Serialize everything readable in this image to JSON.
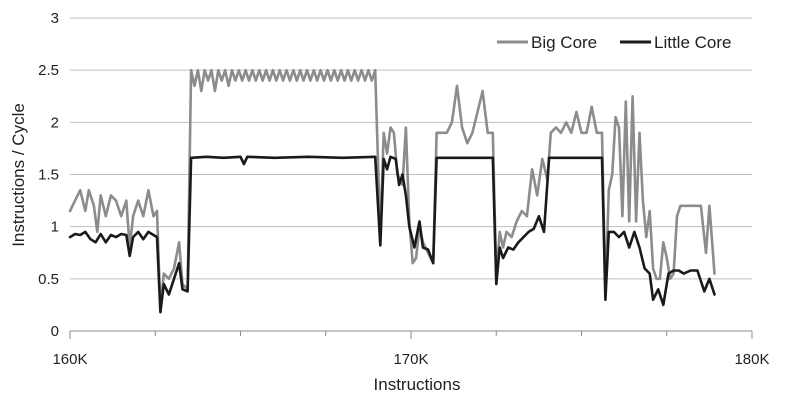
{
  "chart_data": {
    "type": "line",
    "xlabel": "Instructions",
    "ylabel": "Instructions / Cycle",
    "xlim": [
      160000,
      180000
    ],
    "ylim": [
      0,
      3
    ],
    "x_ticks": [
      160000,
      170000,
      180000
    ],
    "x_tick_labels": [
      "160K",
      "170K",
      "180K"
    ],
    "y_ticks": [
      0,
      0.5,
      1,
      1.5,
      2,
      2.5,
      3
    ],
    "y_tick_labels": [
      "0",
      "0.5",
      "1",
      "1.5",
      "2",
      "2.5",
      "3"
    ],
    "grid": "horizontal",
    "legend_position": "top-right",
    "series": [
      {
        "name": "Big Core",
        "color": "#8c8c8c",
        "points": [
          [
            160000,
            1.15
          ],
          [
            160150,
            1.25
          ],
          [
            160300,
            1.35
          ],
          [
            160450,
            1.15
          ],
          [
            160550,
            1.35
          ],
          [
            160700,
            1.2
          ],
          [
            160800,
            0.95
          ],
          [
            160900,
            1.3
          ],
          [
            161050,
            1.1
          ],
          [
            161200,
            1.3
          ],
          [
            161350,
            1.25
          ],
          [
            161500,
            1.1
          ],
          [
            161650,
            1.25
          ],
          [
            161750,
            0.8
          ],
          [
            161850,
            1.1
          ],
          [
            162000,
            1.25
          ],
          [
            162150,
            1.1
          ],
          [
            162300,
            1.35
          ],
          [
            162450,
            1.1
          ],
          [
            162550,
            1.15
          ],
          [
            162650,
            0.2
          ],
          [
            162750,
            0.55
          ],
          [
            162900,
            0.5
          ],
          [
            163050,
            0.6
          ],
          [
            163200,
            0.85
          ],
          [
            163300,
            0.45
          ],
          [
            163450,
            0.4
          ],
          [
            163550,
            2.5
          ],
          [
            163650,
            2.35
          ],
          [
            163750,
            2.5
          ],
          [
            163850,
            2.3
          ],
          [
            163950,
            2.5
          ],
          [
            164050,
            2.4
          ],
          [
            164150,
            2.5
          ],
          [
            164250,
            2.3
          ],
          [
            164350,
            2.5
          ],
          [
            164450,
            2.4
          ],
          [
            164550,
            2.5
          ],
          [
            164650,
            2.35
          ],
          [
            164750,
            2.5
          ],
          [
            164850,
            2.4
          ],
          [
            164950,
            2.5
          ],
          [
            165050,
            2.4
          ],
          [
            165150,
            2.5
          ],
          [
            165250,
            2.4
          ],
          [
            165350,
            2.5
          ],
          [
            165450,
            2.4
          ],
          [
            165550,
            2.5
          ],
          [
            165650,
            2.4
          ],
          [
            165750,
            2.5
          ],
          [
            165850,
            2.4
          ],
          [
            165950,
            2.5
          ],
          [
            166050,
            2.4
          ],
          [
            166150,
            2.5
          ],
          [
            166250,
            2.4
          ],
          [
            166350,
            2.5
          ],
          [
            166450,
            2.4
          ],
          [
            166550,
            2.5
          ],
          [
            166650,
            2.4
          ],
          [
            166750,
            2.5
          ],
          [
            166850,
            2.4
          ],
          [
            166950,
            2.5
          ],
          [
            167050,
            2.4
          ],
          [
            167150,
            2.5
          ],
          [
            167250,
            2.4
          ],
          [
            167350,
            2.5
          ],
          [
            167450,
            2.4
          ],
          [
            167550,
            2.5
          ],
          [
            167650,
            2.4
          ],
          [
            167750,
            2.5
          ],
          [
            167850,
            2.4
          ],
          [
            167950,
            2.5
          ],
          [
            168050,
            2.4
          ],
          [
            168150,
            2.5
          ],
          [
            168250,
            2.4
          ],
          [
            168350,
            2.5
          ],
          [
            168450,
            2.4
          ],
          [
            168550,
            2.5
          ],
          [
            168650,
            2.4
          ],
          [
            168750,
            2.5
          ],
          [
            168850,
            2.4
          ],
          [
            168950,
            2.5
          ],
          [
            169100,
            0.9
          ],
          [
            169200,
            1.9
          ],
          [
            169300,
            1.7
          ],
          [
            169400,
            1.95
          ],
          [
            169500,
            1.9
          ],
          [
            169600,
            1.5
          ],
          [
            169750,
            1.4
          ],
          [
            169850,
            1.95
          ],
          [
            169950,
            1.05
          ],
          [
            170050,
            0.65
          ],
          [
            170150,
            0.7
          ],
          [
            170250,
            1.0
          ],
          [
            170350,
            0.85
          ],
          [
            170500,
            0.75
          ],
          [
            170650,
            0.65
          ],
          [
            170750,
            1.9
          ],
          [
            170900,
            1.9
          ],
          [
            171050,
            1.9
          ],
          [
            171200,
            2.0
          ],
          [
            171350,
            2.35
          ],
          [
            171500,
            1.95
          ],
          [
            171650,
            1.8
          ],
          [
            171800,
            1.9
          ],
          [
            171950,
            2.1
          ],
          [
            172100,
            2.3
          ],
          [
            172250,
            1.9
          ],
          [
            172400,
            1.9
          ],
          [
            172500,
            0.5
          ],
          [
            172600,
            0.95
          ],
          [
            172700,
            0.8
          ],
          [
            172800,
            0.95
          ],
          [
            172950,
            0.9
          ],
          [
            173100,
            1.05
          ],
          [
            173250,
            1.15
          ],
          [
            173400,
            1.1
          ],
          [
            173550,
            1.55
          ],
          [
            173700,
            1.3
          ],
          [
            173850,
            1.65
          ],
          [
            174000,
            1.45
          ],
          [
            174100,
            1.9
          ],
          [
            174250,
            1.95
          ],
          [
            174400,
            1.9
          ],
          [
            174550,
            2.0
          ],
          [
            174700,
            1.9
          ],
          [
            174850,
            2.1
          ],
          [
            175000,
            1.9
          ],
          [
            175150,
            1.9
          ],
          [
            175300,
            2.15
          ],
          [
            175450,
            1.9
          ],
          [
            175600,
            1.9
          ],
          [
            175700,
            0.35
          ],
          [
            175800,
            1.35
          ],
          [
            175900,
            1.5
          ],
          [
            176000,
            2.05
          ],
          [
            176100,
            1.95
          ],
          [
            176200,
            1.1
          ],
          [
            176300,
            2.2
          ],
          [
            176400,
            1.05
          ],
          [
            176500,
            2.25
          ],
          [
            176600,
            1.05
          ],
          [
            176700,
            1.9
          ],
          [
            176800,
            1.25
          ],
          [
            176900,
            0.9
          ],
          [
            177000,
            1.15
          ],
          [
            177100,
            0.6
          ],
          [
            177200,
            0.5
          ],
          [
            177300,
            0.5
          ],
          [
            177400,
            0.85
          ],
          [
            177500,
            0.7
          ],
          [
            177600,
            0.5
          ],
          [
            177700,
            0.55
          ],
          [
            177800,
            1.1
          ],
          [
            177900,
            1.2
          ],
          [
            178050,
            1.2
          ],
          [
            178200,
            1.2
          ],
          [
            178350,
            1.2
          ],
          [
            178500,
            1.2
          ],
          [
            178650,
            0.75
          ],
          [
            178750,
            1.2
          ],
          [
            178900,
            0.55
          ]
        ]
      },
      {
        "name": "Little Core",
        "color": "#1a1a1a",
        "points": [
          [
            160000,
            0.9
          ],
          [
            160150,
            0.93
          ],
          [
            160300,
            0.92
          ],
          [
            160450,
            0.95
          ],
          [
            160600,
            0.88
          ],
          [
            160750,
            0.85
          ],
          [
            160900,
            0.93
          ],
          [
            161050,
            0.85
          ],
          [
            161200,
            0.92
          ],
          [
            161350,
            0.9
          ],
          [
            161500,
            0.93
          ],
          [
            161650,
            0.92
          ],
          [
            161750,
            0.72
          ],
          [
            161850,
            0.9
          ],
          [
            162000,
            0.95
          ],
          [
            162150,
            0.88
          ],
          [
            162300,
            0.95
          ],
          [
            162450,
            0.92
          ],
          [
            162550,
            0.9
          ],
          [
            162650,
            0.18
          ],
          [
            162750,
            0.45
          ],
          [
            162900,
            0.35
          ],
          [
            163050,
            0.5
          ],
          [
            163200,
            0.65
          ],
          [
            163300,
            0.4
          ],
          [
            163450,
            0.38
          ],
          [
            163550,
            1.66
          ],
          [
            164000,
            1.67
          ],
          [
            164500,
            1.66
          ],
          [
            165000,
            1.67
          ],
          [
            165100,
            1.6
          ],
          [
            165200,
            1.67
          ],
          [
            166000,
            1.66
          ],
          [
            167000,
            1.67
          ],
          [
            168000,
            1.66
          ],
          [
            168950,
            1.67
          ],
          [
            169100,
            0.82
          ],
          [
            169200,
            1.65
          ],
          [
            169300,
            1.55
          ],
          [
            169400,
            1.67
          ],
          [
            169550,
            1.65
          ],
          [
            169650,
            1.4
          ],
          [
            169750,
            1.5
          ],
          [
            169850,
            1.3
          ],
          [
            169950,
            1.0
          ],
          [
            170100,
            0.8
          ],
          [
            170250,
            1.05
          ],
          [
            170350,
            0.8
          ],
          [
            170500,
            0.78
          ],
          [
            170650,
            0.65
          ],
          [
            170750,
            1.66
          ],
          [
            171500,
            1.66
          ],
          [
            172400,
            1.66
          ],
          [
            172500,
            0.45
          ],
          [
            172600,
            0.8
          ],
          [
            172700,
            0.7
          ],
          [
            172850,
            0.8
          ],
          [
            173000,
            0.78
          ],
          [
            173150,
            0.85
          ],
          [
            173300,
            0.9
          ],
          [
            173450,
            0.95
          ],
          [
            173600,
            0.98
          ],
          [
            173750,
            1.1
          ],
          [
            173900,
            0.95
          ],
          [
            174050,
            1.66
          ],
          [
            175600,
            1.66
          ],
          [
            175700,
            0.3
          ],
          [
            175800,
            0.95
          ],
          [
            175950,
            0.95
          ],
          [
            176100,
            0.9
          ],
          [
            176250,
            0.95
          ],
          [
            176400,
            0.8
          ],
          [
            176550,
            0.95
          ],
          [
            176700,
            0.8
          ],
          [
            176850,
            0.6
          ],
          [
            177000,
            0.55
          ],
          [
            177100,
            0.3
          ],
          [
            177250,
            0.4
          ],
          [
            177400,
            0.25
          ],
          [
            177550,
            0.55
          ],
          [
            177700,
            0.58
          ],
          [
            177850,
            0.58
          ],
          [
            178000,
            0.55
          ],
          [
            178200,
            0.58
          ],
          [
            178400,
            0.58
          ],
          [
            178600,
            0.38
          ],
          [
            178750,
            0.5
          ],
          [
            178900,
            0.35
          ]
        ]
      }
    ]
  }
}
